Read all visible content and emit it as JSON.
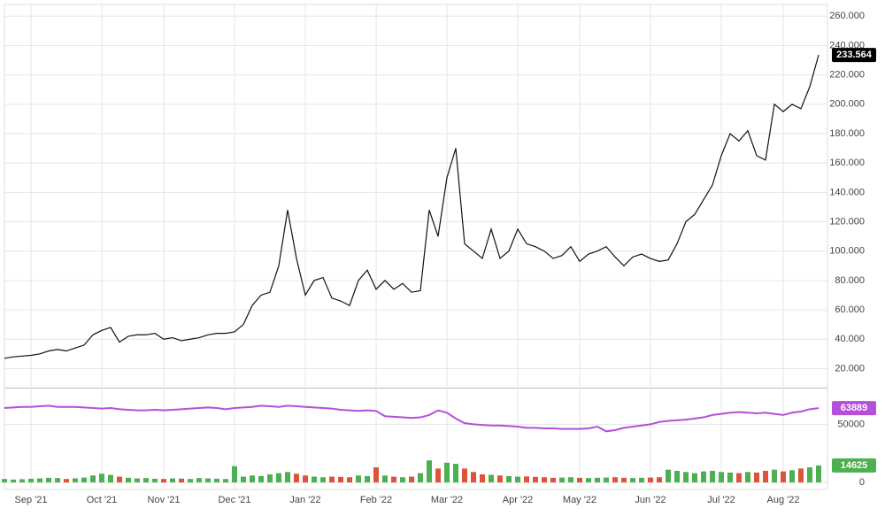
{
  "chart_data": [
    {
      "type": "line",
      "categories": [
        null,
        null,
        null,
        "Sep '21",
        null,
        null,
        null,
        null,
        null,
        null,
        null,
        "Oct '21",
        null,
        null,
        null,
        null,
        null,
        null,
        "Nov '21",
        null,
        null,
        null,
        null,
        null,
        null,
        null,
        "Dec '21",
        null,
        null,
        null,
        null,
        null,
        null,
        null,
        "Jan '22",
        null,
        null,
        null,
        null,
        null,
        null,
        null,
        "Feb '22",
        null,
        null,
        null,
        null,
        null,
        null,
        null,
        "Mar '22",
        null,
        null,
        null,
        null,
        null,
        null,
        null,
        "Apr '22",
        null,
        null,
        null,
        null,
        null,
        null,
        "May '22",
        null,
        null,
        null,
        null,
        null,
        null,
        null,
        "Jun '22",
        null,
        null,
        null,
        null,
        null,
        null,
        null,
        "Jul '22",
        null,
        null,
        null,
        null,
        null,
        null,
        "Aug '22",
        null,
        null,
        null,
        null
      ],
      "series": [
        {
          "color": "#111111",
          "values": [
            27,
            28,
            28.5,
            29,
            30,
            32,
            33,
            32,
            34,
            36,
            43,
            46,
            48,
            38,
            42,
            43,
            43,
            44,
            40,
            41,
            39,
            40,
            41,
            43,
            44,
            44,
            45,
            50,
            63,
            70,
            72,
            90,
            128,
            95,
            70,
            80,
            82,
            68,
            66,
            63,
            80,
            87,
            74,
            80,
            74,
            78,
            72,
            73,
            128,
            110,
            150,
            170,
            105,
            100,
            95,
            115,
            95,
            100,
            115,
            105,
            103,
            100,
            95,
            97,
            103,
            93,
            98,
            100,
            103,
            96,
            90,
            96,
            98,
            95,
            93,
            94,
            105,
            120,
            125,
            135,
            145,
            165,
            180,
            175,
            182,
            165,
            162,
            200,
            195,
            200,
            197,
            212,
            233.564
          ]
        }
      ],
      "ylim": [
        7,
        268
      ],
      "yticks": [
        {
          "value": 20,
          "label": "20.000"
        },
        {
          "value": 40,
          "label": "40.000"
        },
        {
          "value": 60,
          "label": "60.000"
        },
        {
          "value": 80,
          "label": "80.000"
        },
        {
          "value": 100,
          "label": "100.000"
        },
        {
          "value": 120,
          "label": "120.000"
        },
        {
          "value": 140,
          "label": "140.000"
        },
        {
          "value": 160,
          "label": "160.000"
        },
        {
          "value": 180,
          "label": "180.000"
        },
        {
          "value": 200,
          "label": "200.000"
        },
        {
          "value": 220,
          "label": "220.000"
        },
        {
          "value": 240,
          "label": "240.000"
        },
        {
          "value": 260,
          "label": "260.000"
        }
      ],
      "grid": true
    },
    {
      "type": "combo",
      "series": [
        {
          "type": "line",
          "color": "#b54fd8",
          "values": [
            64000,
            64500,
            65000,
            65000,
            65500,
            66000,
            65000,
            65000,
            65000,
            64500,
            64000,
            63500,
            64000,
            63000,
            62500,
            62000,
            62000,
            62500,
            62000,
            62500,
            63000,
            63500,
            64000,
            64500,
            64000,
            63000,
            64000,
            64500,
            65000,
            66000,
            65500,
            65000,
            66000,
            65500,
            65000,
            64500,
            64000,
            63500,
            62500,
            62000,
            61500,
            62000,
            61500,
            57000,
            56500,
            56000,
            55500,
            56000,
            58000,
            62000,
            60000,
            55000,
            51000,
            50000,
            49500,
            49000,
            49000,
            48500,
            48000,
            47000,
            47000,
            46500,
            46500,
            46000,
            46000,
            46000,
            46500,
            48000,
            44000,
            45000,
            47000,
            48000,
            49000,
            50000,
            52000,
            53000,
            53500,
            54000,
            55000,
            56000,
            58000,
            59000,
            60000,
            60500,
            60000,
            59500,
            60000,
            59000,
            58000,
            60000,
            61000,
            63000,
            63889
          ]
        },
        {
          "type": "bar",
          "up_color": "#4caf50",
          "down_color": "#e0533b",
          "values": [
            3000,
            2500,
            2800,
            3200,
            3500,
            4000,
            3800,
            3000,
            3500,
            4200,
            6000,
            7500,
            6500,
            5000,
            4000,
            3500,
            3800,
            3200,
            3000,
            3500,
            3300,
            3000,
            3800,
            3500,
            3200,
            3000,
            14000,
            5000,
            6000,
            5500,
            7000,
            8000,
            9000,
            7500,
            6000,
            5000,
            4500,
            5000,
            4800,
            4500,
            6000,
            5500,
            13000,
            6000,
            5000,
            4500,
            5000,
            8000,
            19000,
            12000,
            17000,
            16000,
            12000,
            9000,
            7000,
            6500,
            6000,
            5500,
            5000,
            5200,
            4800,
            4500,
            4000,
            4200,
            4500,
            4000,
            3800,
            4000,
            4200,
            4500,
            4000,
            3800,
            4000,
            4200,
            4500,
            11000,
            10000,
            9000,
            8000,
            9500,
            10000,
            9000,
            8500,
            8000,
            9000,
            8500,
            10000,
            11000,
            9500,
            10500,
            12000,
            13000,
            14625
          ]
        }
      ],
      "ylim": [
        -6000,
        80000
      ],
      "yticks": [
        0,
        50000
      ],
      "grid": true
    }
  ]
}
